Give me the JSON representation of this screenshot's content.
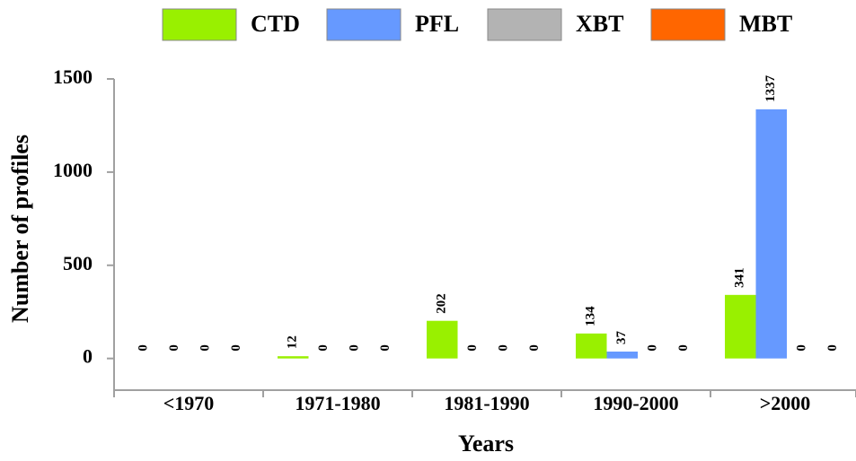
{
  "chart_data": {
    "type": "bar",
    "categories": [
      "<1970",
      "1971-1980",
      "1981-1990",
      "1990-2000",
      ">2000"
    ],
    "series": [
      {
        "name": "CTD",
        "color": "#99f000",
        "values": [
          0,
          12,
          202,
          134,
          341
        ]
      },
      {
        "name": "PFL",
        "color": "#6699ff",
        "values": [
          0,
          0,
          0,
          37,
          1337
        ]
      },
      {
        "name": "XBT",
        "color": "#b3b3b3",
        "values": [
          0,
          0,
          0,
          0,
          0
        ]
      },
      {
        "name": "MBT",
        "color": "#ff6600",
        "values": [
          0,
          0,
          0,
          0,
          0
        ]
      }
    ],
    "xlabel": "Years",
    "ylabel": "Number of profiles",
    "ylim": [
      -170,
      1500
    ],
    "yticks": [
      0,
      500,
      1000,
      1500
    ],
    "legend": "top"
  }
}
